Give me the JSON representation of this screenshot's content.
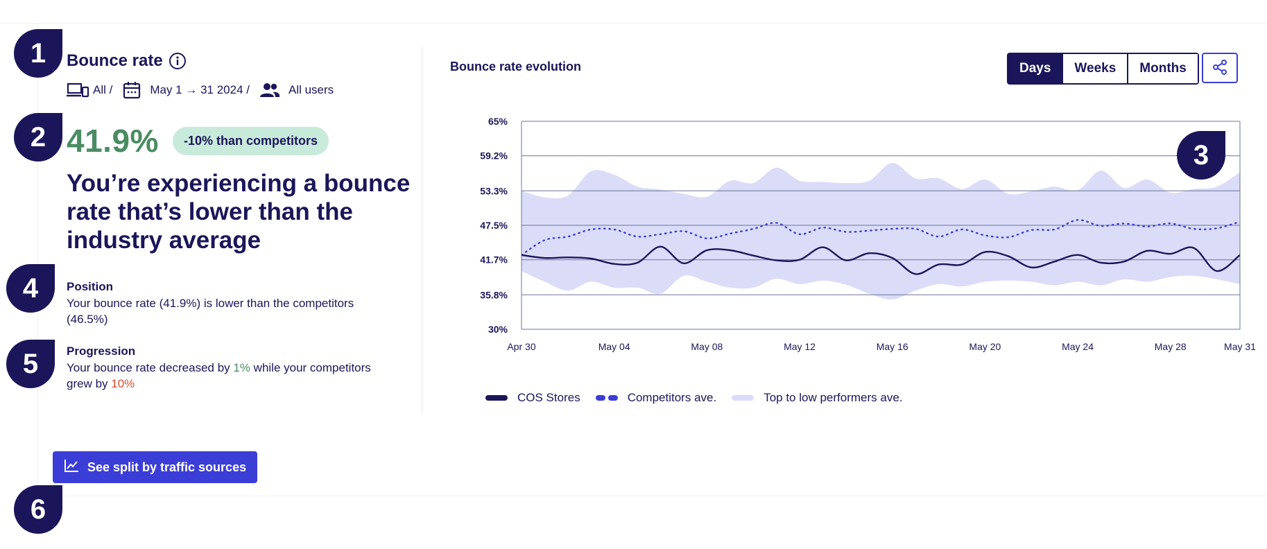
{
  "markers": [
    "1",
    "2",
    "3",
    "4",
    "5",
    "6"
  ],
  "header": {
    "title": "Bounce rate",
    "filters": {
      "device": "All /",
      "date_range": "May 1 → 31 2024 /",
      "audience": "All users"
    }
  },
  "kpi": {
    "value": "41.9%",
    "badge": "-10% than competitors",
    "headline": "You’re experiencing a bounce rate that’s lower than the industry average"
  },
  "position": {
    "title": "Position",
    "text": "Your bounce rate (41.9%) is lower than the competitors (46.5%)"
  },
  "progression": {
    "title": "Progression",
    "text_before": "Your bounce rate decreased by ",
    "decrease": "1%",
    "text_middle": " while your competitors grew by ",
    "growth": "10%"
  },
  "chart": {
    "title": "Bounce rate evolution",
    "period_options": [
      "Days",
      "Weeks",
      "Months"
    ],
    "selected_period": "Days",
    "share_label": "Share"
  },
  "cta": {
    "label": "See split by traffic sources"
  },
  "colors": {
    "navy": "#1b1659",
    "blue": "#3b3ed6",
    "band": "#dadcf8",
    "green": "#4a8c62",
    "red": "#e04a2f"
  },
  "chart_data": {
    "type": "line",
    "title": "Bounce rate evolution",
    "xlabel": "",
    "ylabel": "",
    "yticks": [
      "65%",
      "59.2%",
      "53.3%",
      "47.5%",
      "41.7%",
      "35.8%",
      "30%"
    ],
    "ytick_values": [
      65,
      59.2,
      53.3,
      47.5,
      41.7,
      35.8,
      30
    ],
    "ylim": [
      30,
      65
    ],
    "xticks": [
      "Apr 30",
      "May 04",
      "May 08",
      "May 12",
      "May 16",
      "May 20",
      "May 24",
      "May 28",
      "May 31"
    ],
    "xtick_days": [
      0,
      4,
      8,
      12,
      16,
      20,
      24,
      28,
      31
    ],
    "x": [
      0,
      1,
      2,
      3,
      4,
      5,
      6,
      7,
      8,
      9,
      10,
      11,
      12,
      13,
      14,
      15,
      16,
      17,
      18,
      19,
      20,
      21,
      22,
      23,
      24,
      25,
      26,
      27,
      28,
      29,
      30,
      31
    ],
    "legend": [
      "COS Stores",
      "Competitors ave.",
      "Top to low performers ave."
    ],
    "grid": true,
    "series": [
      {
        "name": "COS Stores",
        "style": "solid",
        "values": [
          42.5,
          42.0,
          42.1,
          41.9,
          41.0,
          41.2,
          43.9,
          41.1,
          43.3,
          43.3,
          42.4,
          41.6,
          41.7,
          43.8,
          41.6,
          42.8,
          42.0,
          39.3,
          40.9,
          40.9,
          43.0,
          42.3,
          40.4,
          41.4,
          42.5,
          41.2,
          41.4,
          43.2,
          42.7,
          43.7,
          39.8,
          42.5
        ]
      },
      {
        "name": "Competitors ave.",
        "style": "dotted",
        "values": [
          42.5,
          45.0,
          45.6,
          46.8,
          46.8,
          45.6,
          46.0,
          46.5,
          45.3,
          46.1,
          46.9,
          47.9,
          46.0,
          47.1,
          46.4,
          46.6,
          46.9,
          46.9,
          45.6,
          46.8,
          45.8,
          45.5,
          46.7,
          46.8,
          48.4,
          47.4,
          47.8,
          47.3,
          47.8,
          46.9,
          47.0,
          48.1
        ]
      },
      {
        "name": "Top to low performers ave. (upper)",
        "style": "band-upper",
        "values": [
          53.3,
          52.2,
          52.5,
          56.6,
          56.0,
          54.0,
          53.5,
          52.8,
          52.3,
          55.0,
          54.6,
          57.2,
          55.0,
          54.8,
          54.6,
          55.0,
          58.0,
          55.4,
          55.4,
          53.6,
          55.2,
          52.8,
          53.2,
          54.0,
          53.4,
          56.7,
          53.8,
          55.2,
          53.0,
          53.6,
          54.0,
          56.4
        ]
      },
      {
        "name": "Top to low performers ave. (lower)",
        "style": "band-lower",
        "values": [
          39.8,
          38.0,
          36.5,
          38.0,
          37.0,
          37.0,
          36.0,
          39.0,
          38.0,
          37.0,
          37.0,
          38.5,
          37.6,
          38.2,
          37.5,
          36.0,
          35.0,
          36.5,
          37.6,
          37.2,
          38.0,
          38.2,
          38.0,
          37.4,
          38.0,
          37.4,
          38.4,
          38.0,
          38.8,
          39.0,
          38.4,
          37.6
        ]
      }
    ]
  }
}
